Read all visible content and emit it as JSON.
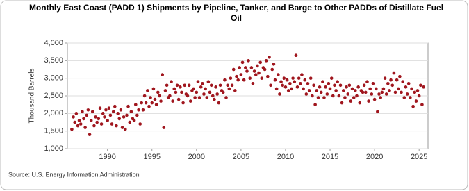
{
  "chart_data": {
    "type": "scatter",
    "title": "Monthly East Coast (PADD 1) Shipments by Pipeline, Tanker, and Barge to Other PADDs of Distillate Fuel Oil",
    "ylabel": "Thousand Barrels",
    "source": "Source: U.S. Energy Information Administration",
    "color": "#a0161e",
    "grid": true,
    "xlim": [
      1985.5,
      2026
    ],
    "xticks": [
      1990,
      1995,
      2000,
      2005,
      2010,
      2015,
      2020,
      2025
    ],
    "ylim": [
      1000,
      4000
    ],
    "yticks": [
      {
        "value": 1000,
        "label": "1,000"
      },
      {
        "value": 1500,
        "label": "1,500"
      },
      {
        "value": 2000,
        "label": "2,000"
      },
      {
        "value": 2500,
        "label": "2,500"
      },
      {
        "value": 3000,
        "label": "3,000"
      },
      {
        "value": 3500,
        "label": "3,500"
      },
      {
        "value": 4000,
        "label": "4,000"
      }
    ],
    "x": [
      1986,
      1986.17,
      1986.33,
      1986.5,
      1986.67,
      1986.83,
      1987,
      1987.17,
      1987.33,
      1987.5,
      1987.67,
      1987.83,
      1988,
      1988.17,
      1988.33,
      1988.5,
      1988.67,
      1988.83,
      1989,
      1989.17,
      1989.33,
      1989.5,
      1989.67,
      1989.83,
      1990,
      1990.17,
      1990.33,
      1990.5,
      1990.67,
      1990.83,
      1991,
      1991.17,
      1991.33,
      1991.5,
      1991.67,
      1991.83,
      1992,
      1992.17,
      1992.33,
      1992.5,
      1992.67,
      1992.83,
      1993,
      1993.17,
      1993.33,
      1993.5,
      1993.67,
      1993.83,
      1994,
      1994.17,
      1994.33,
      1994.5,
      1994.67,
      1994.83,
      1995,
      1995.17,
      1995.33,
      1995.5,
      1995.67,
      1995.83,
      1996,
      1996.17,
      1996.33,
      1996.5,
      1996.67,
      1996.83,
      1997,
      1997.17,
      1997.33,
      1997.5,
      1997.67,
      1997.83,
      1998,
      1998.17,
      1998.33,
      1998.5,
      1998.67,
      1998.83,
      1999,
      1999.17,
      1999.33,
      1999.5,
      1999.67,
      1999.83,
      2000,
      2000.17,
      2000.33,
      2000.5,
      2000.67,
      2000.83,
      2001,
      2001.17,
      2001.33,
      2001.5,
      2001.67,
      2001.83,
      2002,
      2002.17,
      2002.33,
      2002.5,
      2002.67,
      2002.83,
      2003,
      2003.17,
      2003.33,
      2003.5,
      2003.67,
      2003.83,
      2004,
      2004.17,
      2004.33,
      2004.5,
      2004.67,
      2004.83,
      2005,
      2005.17,
      2005.33,
      2005.5,
      2005.67,
      2005.83,
      2006,
      2006.17,
      2006.33,
      2006.5,
      2006.67,
      2006.83,
      2007,
      2007.17,
      2007.33,
      2007.5,
      2007.67,
      2007.83,
      2008,
      2008.17,
      2008.33,
      2008.5,
      2008.67,
      2008.83,
      2009,
      2009.17,
      2009.33,
      2009.5,
      2009.67,
      2009.83,
      2010,
      2010.17,
      2010.33,
      2010.5,
      2010.67,
      2010.83,
      2011,
      2011.17,
      2011.33,
      2011.5,
      2011.67,
      2011.83,
      2012,
      2012.17,
      2012.33,
      2012.5,
      2012.67,
      2012.83,
      2013,
      2013.17,
      2013.33,
      2013.5,
      2013.67,
      2013.83,
      2014,
      2014.17,
      2014.33,
      2014.5,
      2014.67,
      2014.83,
      2015,
      2015.17,
      2015.33,
      2015.5,
      2015.67,
      2015.83,
      2016,
      2016.17,
      2016.33,
      2016.5,
      2016.67,
      2016.83,
      2017,
      2017.17,
      2017.33,
      2017.5,
      2017.67,
      2017.83,
      2018,
      2018.17,
      2018.33,
      2018.5,
      2018.67,
      2018.83,
      2019,
      2019.17,
      2019.33,
      2019.5,
      2019.67,
      2019.83,
      2020,
      2020.17,
      2020.33,
      2020.5,
      2020.67,
      2020.83,
      2021,
      2021.17,
      2021.33,
      2021.5,
      2021.67,
      2021.83,
      2022,
      2022.17,
      2022.33,
      2022.5,
      2022.67,
      2022.83,
      2023,
      2023.17,
      2023.33,
      2023.5,
      2023.67,
      2023.83,
      2024,
      2024.17,
      2024.33,
      2024.5,
      2024.67,
      2024.83,
      2025,
      2025.17,
      2025.33,
      2025.5
    ],
    "values": [
      1550,
      1900,
      1750,
      2000,
      1650,
      1800,
      1700,
      2050,
      1850,
      1600,
      1950,
      2100,
      1400,
      1800,
      2050,
      1650,
      1900,
      1750,
      1850,
      2150,
      1700,
      2000,
      1900,
      2100,
      1800,
      2150,
      1950,
      1700,
      2050,
      2200,
      1650,
      2000,
      1850,
      2100,
      1600,
      1900,
      1550,
      1950,
      2200,
      1750,
      2050,
      1850,
      1800,
      2250,
      1950,
      2100,
      1700,
      2300,
      2100,
      2500,
      2300,
      2650,
      2200,
      2450,
      2300,
      2700,
      2400,
      2250,
      2600,
      2500,
      2350,
      3100,
      1600,
      2650,
      2800,
      2450,
      2500,
      2900,
      2350,
      2700,
      2600,
      2800,
      2400,
      2750,
      2600,
      2300,
      2800,
      2550,
      2500,
      2800,
      2350,
      2650,
      2700,
      2450,
      2600,
      2900,
      2450,
      2750,
      2850,
      2550,
      2700,
      2450,
      2900,
      2600,
      2800,
      2500,
      2400,
      2750,
      2550,
      2300,
      2800,
      2650,
      2600,
      2950,
      2450,
      2800,
      2700,
      3000,
      2800,
      3250,
      2650,
      3050,
      2950,
      3300,
      3100,
      3450,
      2950,
      3300,
      3200,
      3500,
      3000,
      3300,
      2850,
      3200,
      3100,
      3350,
      3150,
      3450,
      3000,
      3300,
      3250,
      3500,
      3050,
      3600,
      2800,
      3250,
      3400,
      2950,
      2700,
      3100,
      2550,
      2900,
      2800,
      3000,
      2750,
      2950,
      2650,
      2850,
      2700,
      3000,
      2900,
      3650,
      2750,
      3000,
      2850,
      3100,
      2700,
      2950,
      2550,
      2850,
      2650,
      3000,
      2500,
      2800,
      2250,
      2650,
      2450,
      2750,
      2600,
      2900,
      2450,
      2750,
      2550,
      2850,
      2700,
      3000,
      2500,
      2800,
      2650,
      2900,
      2500,
      2800,
      2300,
      2650,
      2450,
      2750,
      2550,
      2800,
      2350,
      2700,
      2450,
      2650,
      2500,
      2750,
      2300,
      2650,
      2600,
      2800,
      2600,
      2900,
      2350,
      2700,
      2550,
      2850,
      2400,
      2700,
      2050,
      2550,
      2450,
      2600,
      2700,
      3000,
      2550,
      2850,
      2650,
      2950,
      2800,
      3150,
      2600,
      2950,
      2700,
      3050,
      2600,
      2900,
      2450,
      2750,
      2550,
      2850,
      2450,
      2700,
      2200,
      2600,
      2350,
      2650,
      2500,
      2800,
      2250,
      2750
    ]
  }
}
